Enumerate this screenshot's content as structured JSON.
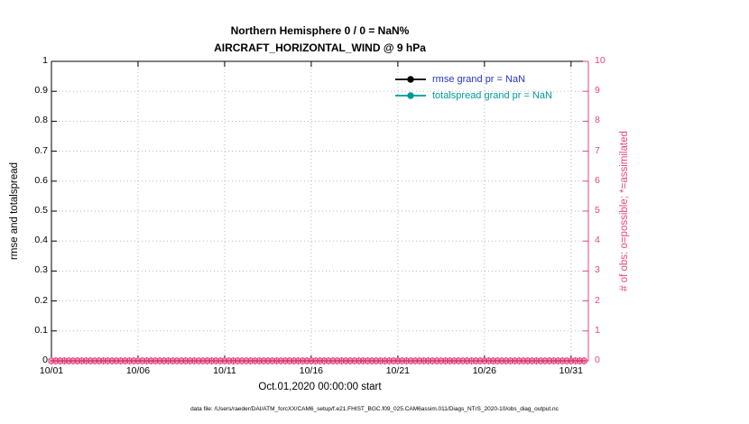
{
  "figure": {
    "title_line1": "Northern Hemisphere 0 / 0 = NaN%",
    "title_line2": "AIRCRAFT_HORIZONTAL_WIND @ 9 hPa",
    "xlabel": "Oct.01,2020 00:00:00 start",
    "ylabel_left": "rmse and totalspread",
    "ylabel_right": "# of obs: o=possible; *=assimilated",
    "footer": "data file: /Users/raeder/DAI/ATM_forcXX/CAM6_setup/f.e21.FHIST_BGC.f09_025.CAM6assim.011/Diags_NTrS_2020-10/obs_diag_output.nc"
  },
  "legend": {
    "items": [
      {
        "label": "rmse grand pr = NaN",
        "line_color": "#000000",
        "text_color": "#2233cc"
      },
      {
        "label": "totalspread grand pr = NaN",
        "line_color": "#009999",
        "text_color": "#009999"
      }
    ]
  },
  "colors": {
    "axis_left": "#000000",
    "axis_right": "#e8457f",
    "grid": "#b0b0b0",
    "background": "#ffffff"
  },
  "chart_data": {
    "type": "line",
    "title": "Northern Hemisphere 0 / 0 = NaN%",
    "subtitle": "AIRCRAFT_HORIZONTAL_WIND @ 9 hPa",
    "x_tick_labels": [
      "10/01",
      "10/06",
      "10/11",
      "10/16",
      "10/21",
      "10/26",
      "10/31"
    ],
    "x_tick_days": [
      0,
      5,
      10,
      15,
      20,
      25,
      30
    ],
    "x_range_days": [
      0,
      31
    ],
    "xlabel": "Oct.01,2020 00:00:00 start",
    "y_left": {
      "label": "rmse and totalspread",
      "range": [
        0,
        1
      ],
      "tick_labels": [
        "0",
        "0.1",
        "0.2",
        "0.3",
        "0.4",
        "0.5",
        "0.6",
        "0.7",
        "0.8",
        "0.9",
        "1"
      ]
    },
    "y_right": {
      "label": "# of obs: o=possible; *=assimilated",
      "range": [
        0,
        10
      ],
      "tick_labels": [
        "0",
        "1",
        "2",
        "3",
        "4",
        "5",
        "6",
        "7",
        "8",
        "9",
        "10"
      ],
      "color": "#e8457f"
    },
    "series": [
      {
        "name": "rmse",
        "grand_mean": "NaN",
        "color": "#000000",
        "values": []
      },
      {
        "name": "totalspread",
        "grand_mean": "NaN",
        "color": "#009999",
        "values": []
      }
    ],
    "obs_counts": {
      "possible_value": 0,
      "assimilated_value": 0,
      "n_times": 124,
      "marker_color": "#e8457f",
      "markers": [
        "o",
        "*"
      ]
    },
    "grid": true,
    "legend_position": "top-right-inside"
  }
}
